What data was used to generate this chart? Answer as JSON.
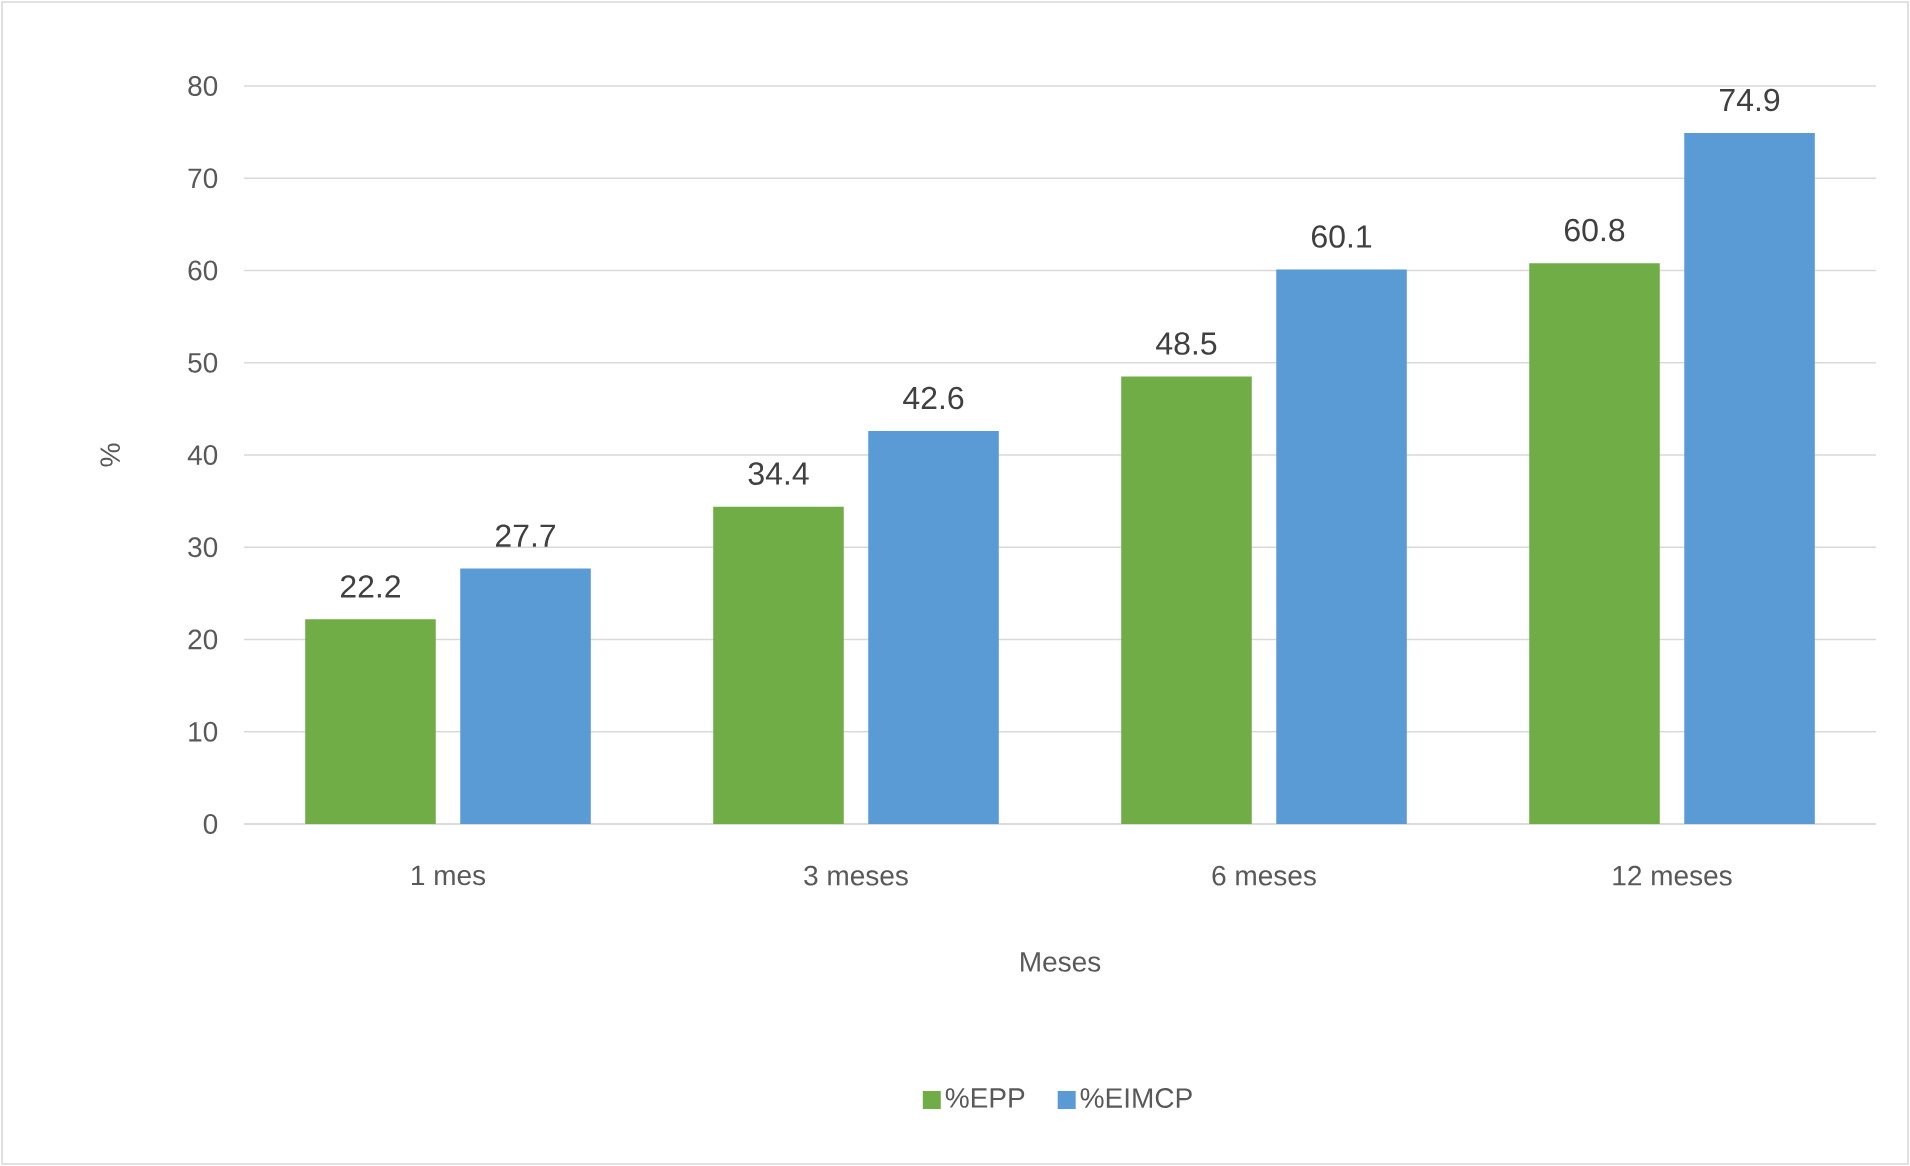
{
  "chart_data": {
    "type": "bar",
    "xlabel": "Meses",
    "ylabel": "%",
    "categories": [
      "1 mes",
      "3 meses",
      "6 meses",
      "12 meses"
    ],
    "series": [
      {
        "name": "%EPP",
        "color": "#70ad47",
        "values": [
          22.2,
          34.4,
          48.5,
          60.8
        ]
      },
      {
        "name": "%EIMCP",
        "color": "#5b9bd5",
        "values": [
          27.7,
          42.6,
          60.1,
          74.9
        ]
      }
    ],
    "ylim": [
      0,
      80
    ],
    "yticks": [
      0,
      10,
      20,
      30,
      40,
      50,
      60,
      70,
      80
    ],
    "grid": "y",
    "legend": "bottom",
    "data_labels": true
  }
}
